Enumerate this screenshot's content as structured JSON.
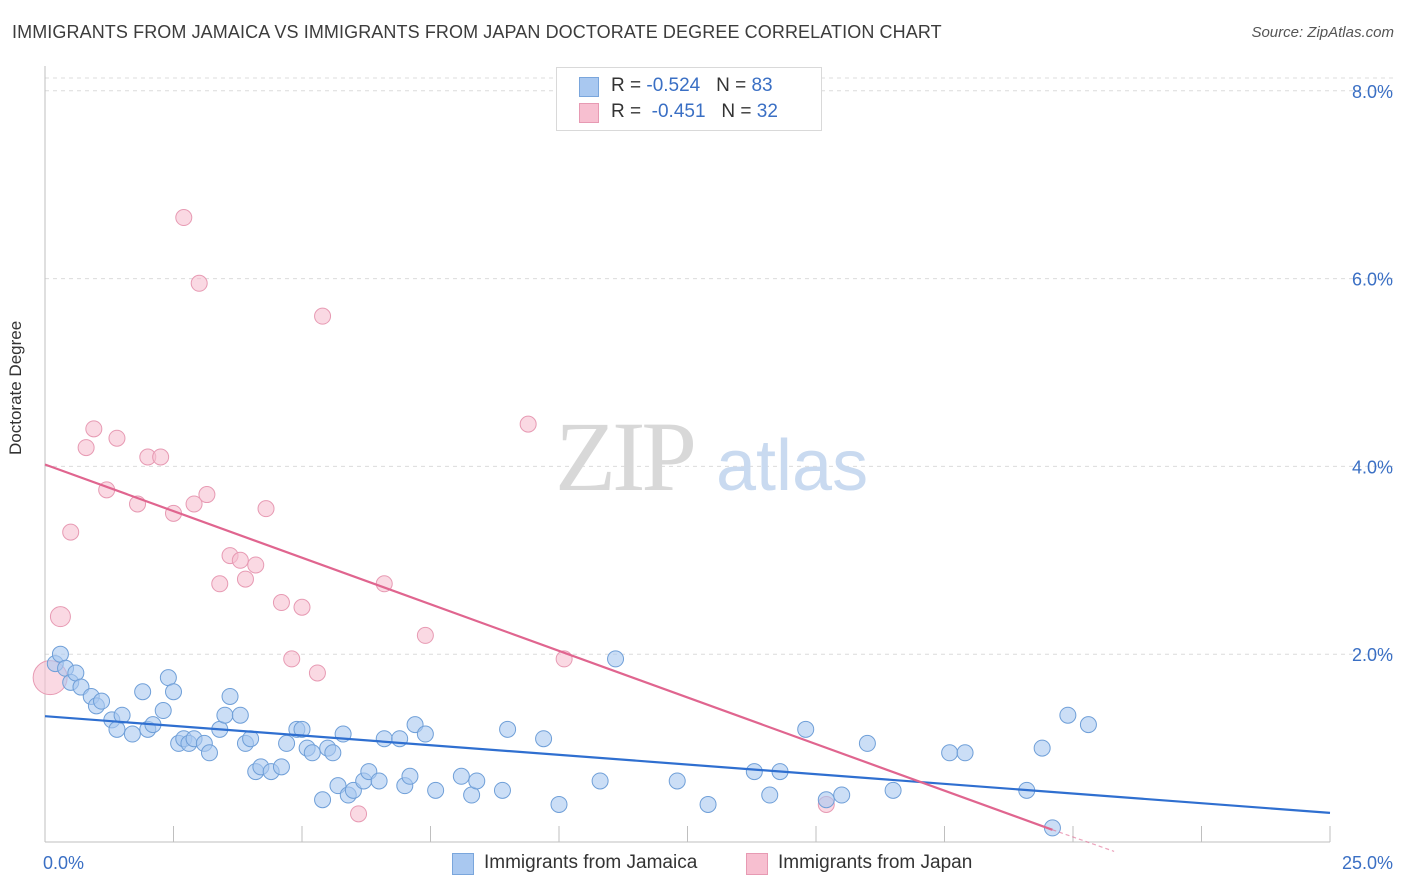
{
  "header": {
    "title": "IMMIGRANTS FROM JAMAICA VS IMMIGRANTS FROM JAPAN DOCTORATE DEGREE CORRELATION CHART",
    "source": "Source: ZipAtlas.com"
  },
  "watermark": {
    "zip": "ZIP",
    "atlas": "atlas"
  },
  "legend": {
    "jamaica": {
      "r_label": "R = ",
      "r_value": "-0.524",
      "n_label": "N = ",
      "n_value": "83",
      "color": "#a9c8f0",
      "stroke": "#7aa6dc"
    },
    "japan": {
      "r_label": "R = ",
      "r_value": "-0.451",
      "n_label": "N = ",
      "n_value": "32",
      "color": "#f7bfd0",
      "stroke": "#e79ab3"
    }
  },
  "bottom_legend": {
    "jamaica": "Immigrants from Jamaica",
    "japan": "Immigrants from Japan"
  },
  "chart_data": {
    "type": "scatter",
    "xlabel": "",
    "ylabel": "Doctorate Degree",
    "xlim": [
      0,
      25
    ],
    "ylim": [
      0,
      8.2
    ],
    "x_tick_labels": [
      "0.0%",
      "25.0%"
    ],
    "y_ticks": [
      2,
      4,
      6,
      8
    ],
    "y_tick_labels": [
      "2.0%",
      "4.0%",
      "6.0%",
      "8.0%"
    ],
    "grid": true,
    "legend_position": "top-center",
    "series": [
      {
        "name": "Immigrants from Jamaica",
        "color": "#a9c8f0",
        "stroke": "#6f9fd8",
        "trend_color": "#2f6fd0",
        "trend": {
          "x": [
            0,
            25
          ],
          "y": [
            1.34,
            0.31
          ]
        },
        "points": [
          [
            0.2,
            1.9
          ],
          [
            0.3,
            2.0
          ],
          [
            0.4,
            1.85
          ],
          [
            0.5,
            1.7
          ],
          [
            0.6,
            1.8
          ],
          [
            0.7,
            1.65
          ],
          [
            0.9,
            1.55
          ],
          [
            1.0,
            1.45
          ],
          [
            1.1,
            1.5
          ],
          [
            1.3,
            1.3
          ],
          [
            1.4,
            1.2
          ],
          [
            1.5,
            1.35
          ],
          [
            1.7,
            1.15
          ],
          [
            1.9,
            1.6
          ],
          [
            2.0,
            1.2
          ],
          [
            2.1,
            1.25
          ],
          [
            2.3,
            1.4
          ],
          [
            2.4,
            1.75
          ],
          [
            2.5,
            1.6
          ],
          [
            2.6,
            1.05
          ],
          [
            2.7,
            1.1
          ],
          [
            2.8,
            1.05
          ],
          [
            2.9,
            1.1
          ],
          [
            3.1,
            1.05
          ],
          [
            3.2,
            0.95
          ],
          [
            3.4,
            1.2
          ],
          [
            3.5,
            1.35
          ],
          [
            3.6,
            1.55
          ],
          [
            3.8,
            1.35
          ],
          [
            3.9,
            1.05
          ],
          [
            4.0,
            1.1
          ],
          [
            4.1,
            0.75
          ],
          [
            4.2,
            0.8
          ],
          [
            4.4,
            0.75
          ],
          [
            4.6,
            0.8
          ],
          [
            4.7,
            1.05
          ],
          [
            4.9,
            1.2
          ],
          [
            5.0,
            1.2
          ],
          [
            5.1,
            1.0
          ],
          [
            5.2,
            0.95
          ],
          [
            5.4,
            0.45
          ],
          [
            5.5,
            1.0
          ],
          [
            5.6,
            0.95
          ],
          [
            5.7,
            0.6
          ],
          [
            5.8,
            1.15
          ],
          [
            5.9,
            0.5
          ],
          [
            6.0,
            0.55
          ],
          [
            6.2,
            0.65
          ],
          [
            6.3,
            0.75
          ],
          [
            6.5,
            0.65
          ],
          [
            6.6,
            1.1
          ],
          [
            6.9,
            1.1
          ],
          [
            7.0,
            0.6
          ],
          [
            7.1,
            0.7
          ],
          [
            7.2,
            1.25
          ],
          [
            7.4,
            1.15
          ],
          [
            7.6,
            0.55
          ],
          [
            8.1,
            0.7
          ],
          [
            8.3,
            0.5
          ],
          [
            8.4,
            0.65
          ],
          [
            8.9,
            0.55
          ],
          [
            9.0,
            1.2
          ],
          [
            9.7,
            1.1
          ],
          [
            10.0,
            0.4
          ],
          [
            10.8,
            0.65
          ],
          [
            11.1,
            1.95
          ],
          [
            12.3,
            0.65
          ],
          [
            12.9,
            0.4
          ],
          [
            13.8,
            0.75
          ],
          [
            14.1,
            0.5
          ],
          [
            14.3,
            0.75
          ],
          [
            14.8,
            1.2
          ],
          [
            15.2,
            0.45
          ],
          [
            15.5,
            0.5
          ],
          [
            16.0,
            1.05
          ],
          [
            16.5,
            0.55
          ],
          [
            17.6,
            0.95
          ],
          [
            17.9,
            0.95
          ],
          [
            19.1,
            0.55
          ],
          [
            19.4,
            1.0
          ],
          [
            19.6,
            0.15
          ],
          [
            19.9,
            1.35
          ],
          [
            20.3,
            1.25
          ]
        ]
      },
      {
        "name": "Immigrants from Japan",
        "color": "#f7bfd0",
        "stroke": "#e79ab3",
        "trend_color": "#e0658f",
        "trend": {
          "x": [
            0,
            19.6
          ],
          "y": [
            4.02,
            0.13
          ],
          "dash_to": [
            20.8,
            -0.1
          ]
        },
        "points": [
          [
            0.1,
            1.75
          ],
          [
            0.3,
            2.4
          ],
          [
            0.5,
            3.3
          ],
          [
            0.8,
            4.2
          ],
          [
            0.95,
            4.4
          ],
          [
            1.2,
            3.75
          ],
          [
            1.4,
            4.3
          ],
          [
            1.8,
            3.6
          ],
          [
            2.0,
            4.1
          ],
          [
            2.25,
            4.1
          ],
          [
            2.5,
            3.5
          ],
          [
            2.7,
            6.65
          ],
          [
            2.9,
            3.6
          ],
          [
            3.0,
            5.95
          ],
          [
            3.15,
            3.7
          ],
          [
            3.4,
            2.75
          ],
          [
            3.6,
            3.05
          ],
          [
            3.8,
            3.0
          ],
          [
            3.9,
            2.8
          ],
          [
            4.1,
            2.95
          ],
          [
            4.3,
            3.55
          ],
          [
            4.6,
            2.55
          ],
          [
            4.8,
            1.95
          ],
          [
            5.0,
            2.5
          ],
          [
            5.3,
            1.8
          ],
          [
            5.4,
            5.6
          ],
          [
            6.1,
            0.3
          ],
          [
            6.6,
            2.75
          ],
          [
            7.4,
            2.2
          ],
          [
            9.4,
            4.45
          ],
          [
            10.1,
            1.95
          ],
          [
            15.2,
            0.4
          ]
        ]
      }
    ]
  }
}
